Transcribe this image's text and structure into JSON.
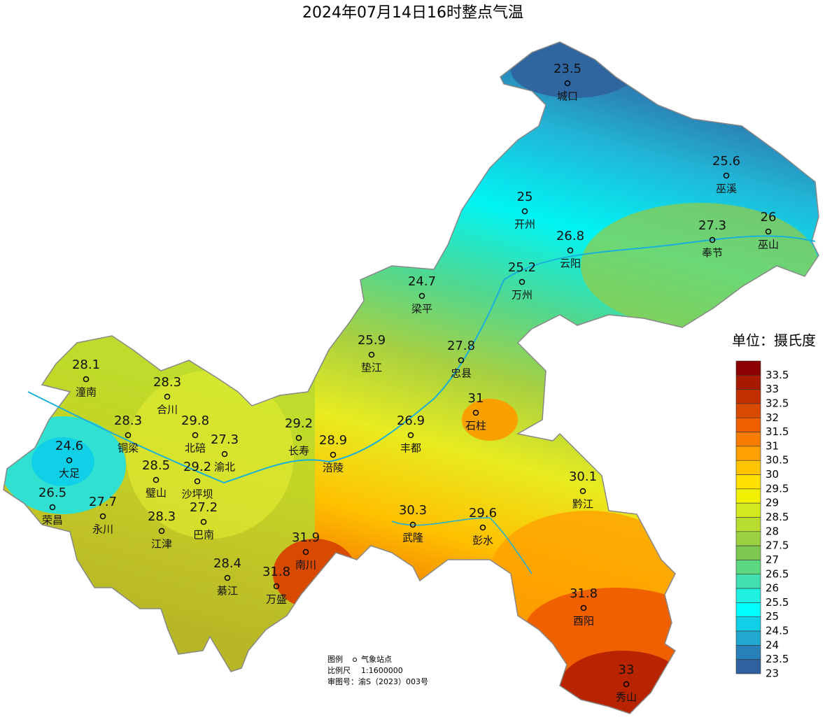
{
  "title": "2024年07月14日16时整点气温",
  "stations": [
    {
      "name": "城口",
      "value": 23.5
    },
    {
      "name": "巫溪",
      "value": 25.6
    },
    {
      "name": "开州",
      "value": 25
    },
    {
      "name": "巫山",
      "value": 26
    },
    {
      "name": "奉节",
      "value": 27.3
    },
    {
      "name": "云阳",
      "value": 26.8
    },
    {
      "name": "万州",
      "value": 25.2
    },
    {
      "name": "梁平",
      "value": 24.7
    },
    {
      "name": "垫江",
      "value": 25.9
    },
    {
      "name": "忠县",
      "value": 27.8
    },
    {
      "name": "潼南",
      "value": 28.1
    },
    {
      "name": "石柱",
      "value": 31
    },
    {
      "name": "合川",
      "value": 28.3
    },
    {
      "name": "铜梁",
      "value": 28.3
    },
    {
      "name": "北碚",
      "value": 29.8
    },
    {
      "name": "渝北",
      "value": 27.3
    },
    {
      "name": "长寿",
      "value": 29.2
    },
    {
      "name": "丰都",
      "value": 26.9
    },
    {
      "name": "涪陵",
      "value": 28.9
    },
    {
      "name": "大足",
      "value": 24.6
    },
    {
      "name": "璧山",
      "value": 28.5
    },
    {
      "name": "沙坪坝",
      "value": 29.2
    },
    {
      "name": "黔江",
      "value": 30.1
    },
    {
      "name": "荣昌",
      "value": 26.5
    },
    {
      "name": "永川",
      "value": 27.7
    },
    {
      "name": "江津",
      "value": 28.3
    },
    {
      "name": "巴南",
      "value": 27.2
    },
    {
      "name": "武隆",
      "value": 30.3
    },
    {
      "name": "彭水",
      "value": 29.6
    },
    {
      "name": "南川",
      "value": 31.9
    },
    {
      "name": "万盛",
      "value": 31.8
    },
    {
      "name": "綦江",
      "value": 28.4
    },
    {
      "name": "酉阳",
      "value": 31.8
    },
    {
      "name": "秀山",
      "value": 33
    }
  ],
  "legend": {
    "title": "单位：摄氏度",
    "levels": [
      33.5,
      33,
      32.5,
      32,
      31.5,
      31,
      30.5,
      30,
      29.5,
      29,
      28.5,
      28,
      27.5,
      27,
      26.5,
      26,
      25.5,
      25,
      24.5,
      24,
      23.5,
      23
    ],
    "colors": [
      "#8b0000",
      "#a81a00",
      "#c33000",
      "#d84a00",
      "#f06000",
      "#f87c00",
      "#ffa000",
      "#ffc400",
      "#ffe000",
      "#f0f000",
      "#d4e820",
      "#b8dc30",
      "#9cd040",
      "#7cc850",
      "#5cd880",
      "#40e0b0",
      "#20f0e0",
      "#00ffff",
      "#10d0e8",
      "#20a8d0",
      "#2880b8",
      "#3060a0"
    ]
  },
  "notes": {
    "legend_label": "图例",
    "station_label": "气象站点",
    "scale_label": "比例尺",
    "scale": "1:1600000",
    "approval": "审图号：渝S（2023）003号"
  }
}
